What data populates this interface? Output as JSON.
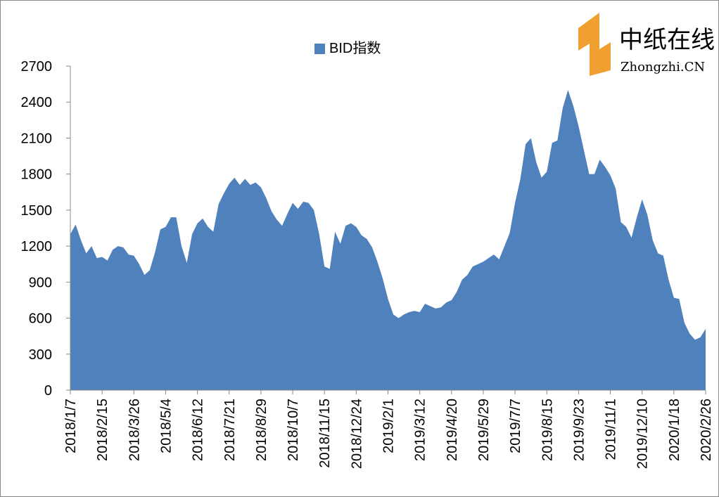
{
  "chart_data": {
    "type": "area",
    "legend_label": "BID指数",
    "color": "#4f81bd",
    "categories": [
      "2018/1/7",
      null,
      null,
      null,
      null,
      null,
      "2018/2/15",
      null,
      null,
      null,
      null,
      null,
      "2018/3/26",
      null,
      null,
      null,
      null,
      null,
      "2018/5/4",
      null,
      null,
      null,
      null,
      null,
      "2018/6/12",
      null,
      null,
      null,
      null,
      null,
      "2018/7/21",
      null,
      null,
      null,
      null,
      null,
      "2018/8/29",
      null,
      null,
      null,
      null,
      null,
      "2018/10/7",
      null,
      null,
      null,
      null,
      null,
      "2018/11/15",
      null,
      null,
      null,
      null,
      null,
      "2018/12/24",
      null,
      null,
      null,
      null,
      null,
      "2019/2/1",
      null,
      null,
      null,
      null,
      null,
      "2019/3/12",
      null,
      null,
      null,
      null,
      null,
      "2019/4/20",
      null,
      null,
      null,
      null,
      null,
      "2019/5/29",
      null,
      null,
      null,
      null,
      null,
      "2019/7/7",
      null,
      null,
      null,
      null,
      null,
      "2019/8/15",
      null,
      null,
      null,
      null,
      null,
      "2019/9/23",
      null,
      null,
      null,
      null,
      null,
      "2019/11/1",
      null,
      null,
      null,
      null,
      null,
      "2019/12/10",
      null,
      null,
      null,
      null,
      null,
      "2020/1/18",
      null,
      null,
      null,
      null,
      null,
      "2020/2/26"
    ],
    "values": [
      1300,
      1380,
      1250,
      1140,
      1200,
      1100,
      1110,
      1080,
      1170,
      1200,
      1190,
      1130,
      1120,
      1050,
      960,
      1000,
      1150,
      1340,
      1360,
      1440,
      1440,
      1200,
      1060,
      1300,
      1390,
      1430,
      1360,
      1320,
      1550,
      1640,
      1720,
      1770,
      1710,
      1760,
      1710,
      1730,
      1690,
      1600,
      1490,
      1420,
      1370,
      1470,
      1560,
      1510,
      1570,
      1560,
      1500,
      1300,
      1030,
      1010,
      1320,
      1220,
      1370,
      1390,
      1360,
      1290,
      1260,
      1190,
      1070,
      930,
      760,
      630,
      600,
      630,
      650,
      660,
      650,
      720,
      700,
      680,
      690,
      730,
      750,
      820,
      920,
      960,
      1030,
      1050,
      1070,
      1100,
      1130,
      1090,
      1200,
      1310,
      1560,
      1760,
      2050,
      2100,
      1900,
      1770,
      1820,
      2060,
      2080,
      2350,
      2500,
      2370,
      2200,
      2000,
      1800,
      1800,
      1920,
      1860,
      1790,
      1680,
      1400,
      1360,
      1270,
      1440,
      1590,
      1460,
      1250,
      1140,
      1120,
      920,
      770,
      760,
      560,
      470,
      420,
      440,
      510
    ],
    "ylim": [
      0,
      2700
    ],
    "yticks": [
      0,
      300,
      600,
      900,
      1200,
      1500,
      1800,
      2100,
      2400,
      2700
    ]
  },
  "logo": {
    "name": "中纸在线",
    "domain": "Zhongzhi.CN"
  }
}
